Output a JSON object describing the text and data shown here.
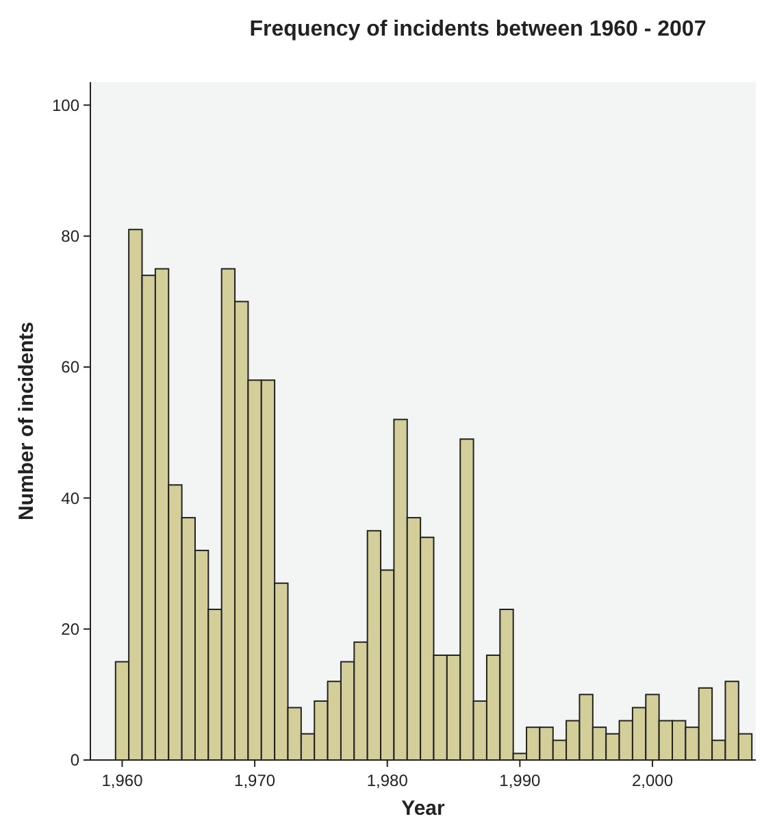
{
  "chart_data": {
    "type": "histogram",
    "title": "Frequency of incidents between 1960 - 2007",
    "xlabel": "Year",
    "ylabel": "Number of incidents",
    "bins": [
      1959.5,
      1960.5,
      1961.5,
      1962.5,
      1963.5,
      1964.5,
      1965.5,
      1966.5,
      1967.5,
      1968.5,
      1969.5,
      1970.5,
      1971.5,
      1972.5,
      1973.5,
      1974.5,
      1975.5,
      1976.5,
      1977.5,
      1978.5,
      1979.5,
      1980.5,
      1981.5,
      1982.5,
      1983.5,
      1984.5,
      1985.5,
      1986.5,
      1987.5,
      1988.5,
      1989.5,
      1990.5,
      1991.5,
      1992.5,
      1993.5,
      1994.5,
      1995.5,
      1996.5,
      1997.5,
      1998.5,
      1999.5,
      2000.5,
      2001.5,
      2002.5,
      2003.5,
      2004.5,
      2005.5,
      2006.5,
      2007.5
    ],
    "values": [
      15,
      81,
      74,
      75,
      42,
      37,
      32,
      23,
      75,
      70,
      58,
      58,
      27,
      8,
      4,
      9,
      12,
      15,
      18,
      35,
      29,
      52,
      37,
      34,
      16,
      16,
      49,
      9,
      16,
      23,
      1,
      5,
      5,
      3,
      6,
      10,
      5,
      4,
      6,
      8,
      10,
      6,
      6,
      5,
      11,
      3,
      12,
      4
    ],
    "color": "#d4cf9a",
    "xlim": [
      1957.6,
      2007.8
    ],
    "xticks": [
      {
        "value": 1960,
        "label": "1,960"
      },
      {
        "value": 1970,
        "label": "1,970"
      },
      {
        "value": 1980,
        "label": "1,980"
      },
      {
        "value": 1990,
        "label": "1,990"
      },
      {
        "value": 2000,
        "label": "2,000"
      }
    ],
    "ylim": [
      0,
      103.5
    ],
    "yticks": [
      0,
      20,
      40,
      60,
      80,
      100
    ]
  }
}
